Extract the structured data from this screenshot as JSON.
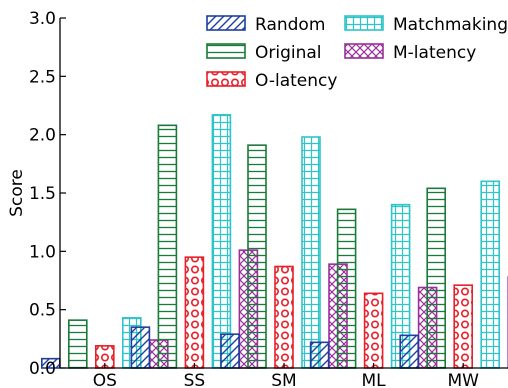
{
  "chart_data": {
    "type": "bar",
    "title": "",
    "xlabel": "",
    "ylabel": "Score",
    "ylim": [
      0,
      3.0
    ],
    "yticks": [
      "0.0",
      "0.5",
      "1.0",
      "1.5",
      "2.0",
      "2.5",
      "3.0"
    ],
    "categories": [
      "OS",
      "SS",
      "SM",
      "ML",
      "MW"
    ],
    "legend_position": "top-right",
    "grid": false,
    "series": [
      {
        "name": "Random",
        "values": [
          0.08,
          0.35,
          0.29,
          0.22,
          0.28
        ],
        "color": "#1f3f9f",
        "pattern": "diagonal"
      },
      {
        "name": "Original",
        "values": [
          0.41,
          2.08,
          1.91,
          1.36,
          1.54
        ],
        "color": "#1a7a3a",
        "pattern": "horizontal"
      },
      {
        "name": "O-latency",
        "values": [
          0.19,
          0.95,
          0.87,
          0.64,
          0.71
        ],
        "color": "#e8202a",
        "pattern": "circles"
      },
      {
        "name": "Matchmaking",
        "values": [
          0.43,
          2.17,
          1.98,
          1.4,
          1.6
        ],
        "color": "#2ec4c8",
        "pattern": "grid"
      },
      {
        "name": "M-latency",
        "values": [
          0.24,
          1.01,
          0.89,
          0.69,
          0.78
        ],
        "color": "#9a2f9a",
        "pattern": "crosshatch"
      }
    ]
  }
}
